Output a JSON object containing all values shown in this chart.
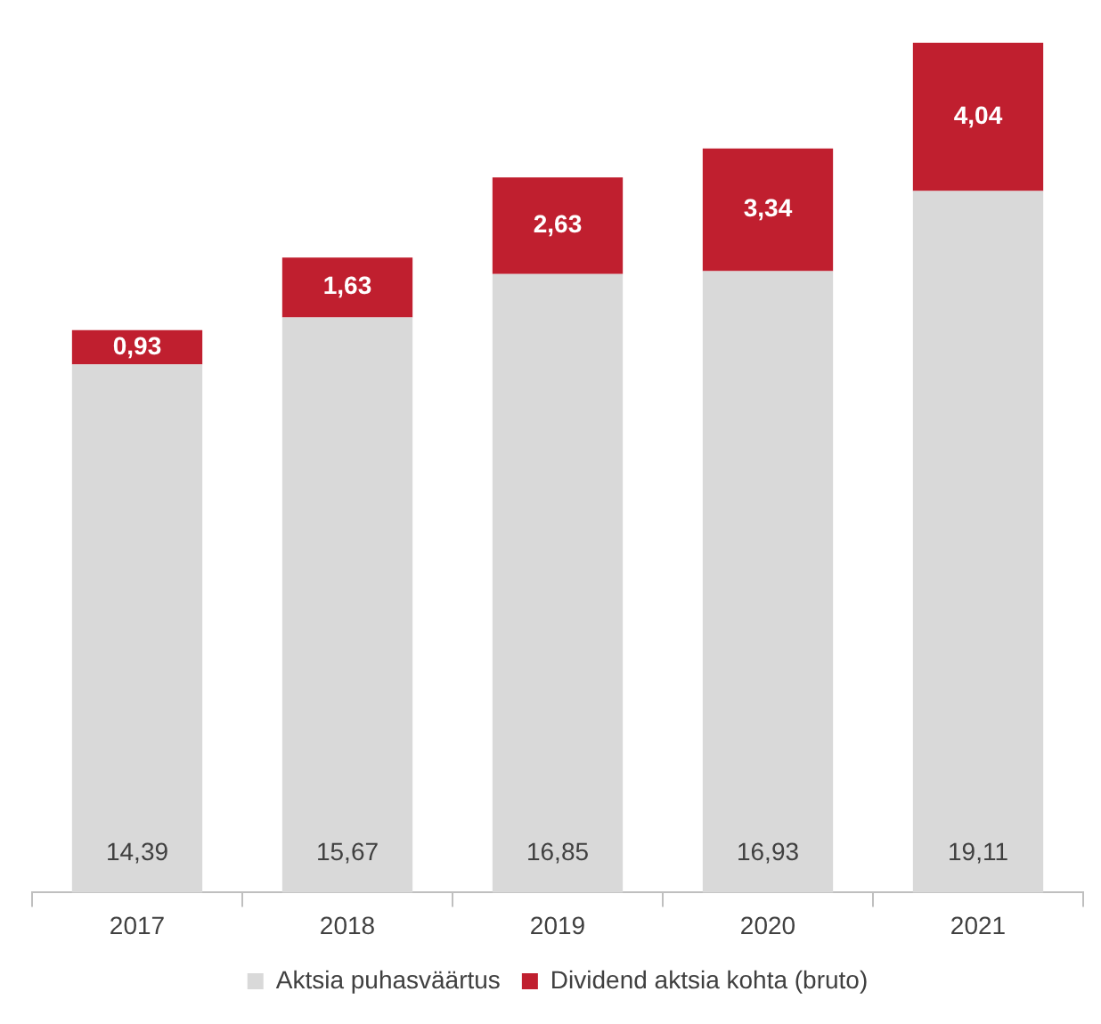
{
  "chart_data": {
    "type": "bar",
    "stacked": true,
    "categories": [
      "2017",
      "2018",
      "2019",
      "2020",
      "2021"
    ],
    "series": [
      {
        "name": "Aktsia puhasväärtus",
        "color": "#d9d9d9",
        "values": [
          14.39,
          15.67,
          16.85,
          16.93,
          19.11
        ],
        "value_labels": [
          "14,39",
          "15,67",
          "16,85",
          "16,93",
          "19,11"
        ]
      },
      {
        "name": "Dividend aktsia kohta (bruto)",
        "color": "#c01f2f",
        "values": [
          0.93,
          1.63,
          2.63,
          3.34,
          4.04
        ],
        "value_labels": [
          "0,93",
          "1,63",
          "2,63",
          "3,34",
          "4,04"
        ]
      }
    ],
    "legend": "bottom",
    "grid": false
  }
}
